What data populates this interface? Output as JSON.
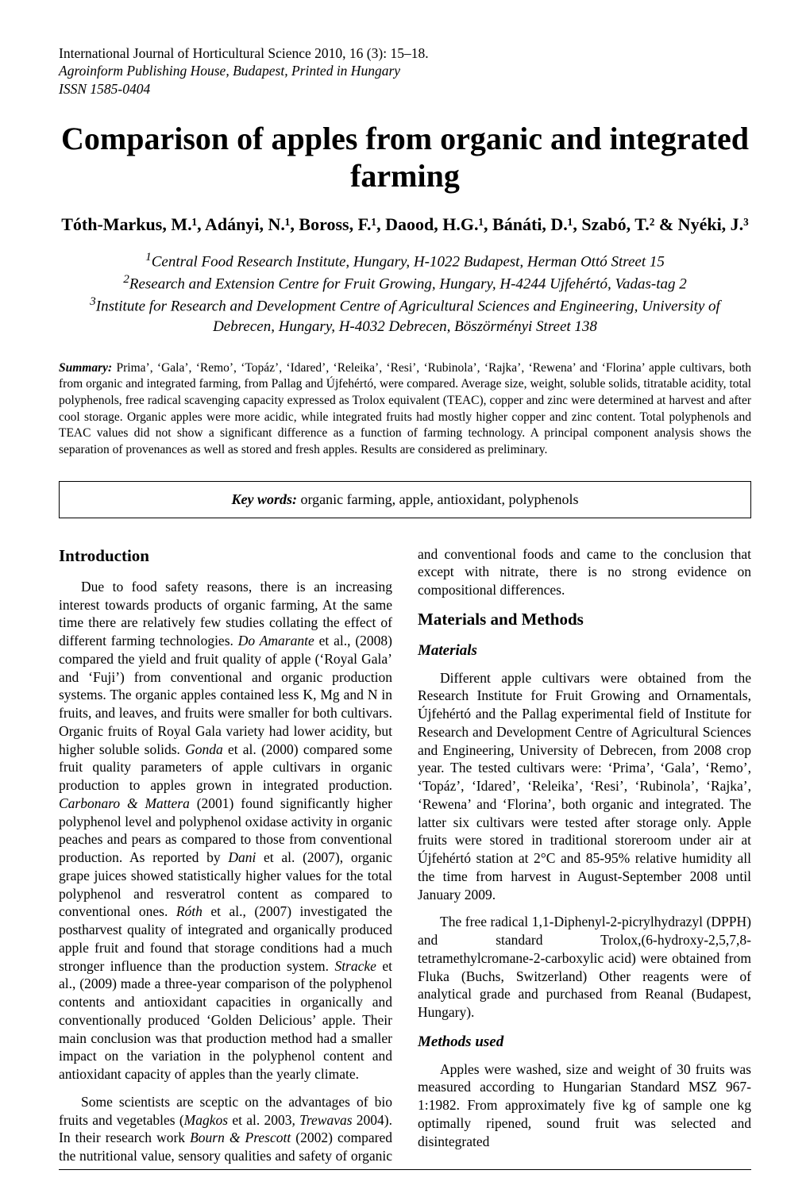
{
  "journal": {
    "line1": "International Journal of Horticultural Science 2010, 16 (3): 15–18.",
    "line2": "Agroinform Publishing House, Budapest, Printed in Hungary",
    "issn": "ISSN 1585-0404"
  },
  "title_line1": "Comparison of apples from organic and integrated",
  "title_line2": "farming",
  "authors": "Tóth-Markus, M.¹, Adányi, N.¹, Boross, F.¹, Daood, H.G.¹, Bánáti, D.¹, Szabó, T.² & Nyéki, J.³",
  "affiliations": [
    {
      "sup": "1",
      "text": "Central Food Research Institute, Hungary, H-1022 Budapest, Herman Ottó Street 15"
    },
    {
      "sup": "2",
      "text": "Research and Extension Centre for Fruit Growing, Hungary, H-4244 Ujfehértó, Vadas-tag 2"
    },
    {
      "sup": "3",
      "text": "Institute for Research and Development Centre of Agricultural Sciences and Engineering, University of Debrecen, Hungary, H-4032 Debrecen, Böszörményi Street 138"
    }
  ],
  "summary": {
    "label": "Summary:",
    "text": " Prima’, ‘Gala’, ‘Remo’, ‘Topáz’, ‘Idared’, ‘Releika’, ‘Resi’, ‘Rubinola’, ‘Rajka’, ‘Rewena’ and ‘Florina’ apple cultivars, both from organic and integrated farming, from Pallag and Újfehértó, were compared. Average size, weight, soluble solids, titratable acidity, total polyphenols, free radical scavenging capacity expressed as Trolox equivalent (TEAC), copper and zinc were determined at harvest and after cool storage. Organic apples were more acidic, while integrated fruits had mostly higher copper and zinc content. Total polyphenols and TEAC values did not show a significant difference as a function of farming technology. A principal component analysis shows the separation of provenances as well as stored and fresh apples. Results are considered as preliminary."
  },
  "keywords": {
    "label": "Key words:",
    "text": " organic farming, apple, antioxidant, polyphenols"
  },
  "sections": {
    "introduction": {
      "heading": "Introduction",
      "p1_a": "Due to food safety reasons, there is an increasing interest towards products of organic farming, At the same time there are relatively few studies collating the effect of different farming technologies. ",
      "p1_do_amarante": "Do Amarante",
      "p1_b": " et al., (2008) compared the yield and fruit quality of apple (‘Royal Gala’ and ‘Fuji’) from conventional and organic production systems. The organic apples contained less K, Mg and N in fruits, and leaves, and fruits were smaller for both cultivars. Organic fruits of Royal Gala variety had lower acidity, but higher soluble solids. ",
      "p1_gonda": "Gonda",
      "p1_c": " et al. (2000) compared some fruit quality parameters of apple cultivars in organic production to apples grown in integrated production. ",
      "p1_carbonaro": "Carbonaro & Mattera",
      "p1_d": " (2001) found significantly higher polyphenol level and polyphenol oxidase activity in organic peaches and pears as compared to those from conventional production. As reported by ",
      "p1_dani": "Dani",
      "p1_e": " et al. (2007), organic grape juices showed statistically higher values for the total polyphenol and resveratrol content as compared to conventional ones. ",
      "p1_roth": "Róth",
      "p1_f": " et al., (2007) investigated the postharvest quality of integrated and organically produced apple fruit and found that storage conditions had a much stronger influence than the production system. ",
      "p1_stracke": "Stracke",
      "p1_g": " et al., (2009) made a three-year comparison of the polyphenol contents and antioxidant capacities in organically and conventionally produced ‘Golden Delicious’ apple. Their main conclusion was that production method had a smaller impact on the variation in the polyphenol content and antioxidant capacity of apples than the yearly climate.",
      "p2_a": "Some scientists are sceptic on the advantages of bio fruits and vegetables (",
      "p2_magkos": "Magkos",
      "p2_b": " et al. 2003",
      "p2_trewavas": ", Trewavas",
      "p2_c": " 2004). In their research work ",
      "p2_bourn": "Bourn & Prescott",
      "p2_d": " (2002) compared the nutritional value, sensory qualities and safety of organic and conventional foods and came to the conclusion that except with nitrate, there is no strong evidence on compositional differences."
    },
    "materials_methods": {
      "heading": "Materials and Methods",
      "materials_heading": "Materials",
      "materials_p1": "Different apple cultivars were obtained from the Research Institute for Fruit Growing and Ornamentals, Újfehértó and the Pallag experimental field of Institute for Research and Development Centre of Agricultural Sciences and Engineering, University of Debrecen, from 2008 crop year. The tested cultivars were: ‘Prima’, ‘Gala’, ‘Remo’, ‘Topáz’, ‘Idared’, ‘Releika’, ‘Resi’, ‘Rubinola’, ‘Rajka’, ‘Rewena’ and ‘Florina’, both organic and integrated. The latter six cultivars were tested after storage only. Apple fruits were stored in traditional storeroom under air at Újfehértó station at 2°C and 85-95% relative humidity all the time from harvest in August-September 2008 until January 2009.",
      "materials_p2": "The free radical 1,1-Diphenyl-2-picrylhydrazyl (DPPH) and standard Trolox,(6-hydroxy-2,5,7,8-tetramethylcromane-2-carboxylic acid) were obtained from Fluka (Buchs, Switzerland) Other reagents were of analytical grade and purchased from Reanal (Budapest, Hungary).",
      "methods_heading": "Methods used",
      "methods_p1": "Apples were washed, size and weight of 30 fruits was measured according to Hungarian Standard MSZ 967-1:1982. From approximately five kg of sample one kg optimally ripened, sound fruit was selected and disintegrated"
    }
  }
}
